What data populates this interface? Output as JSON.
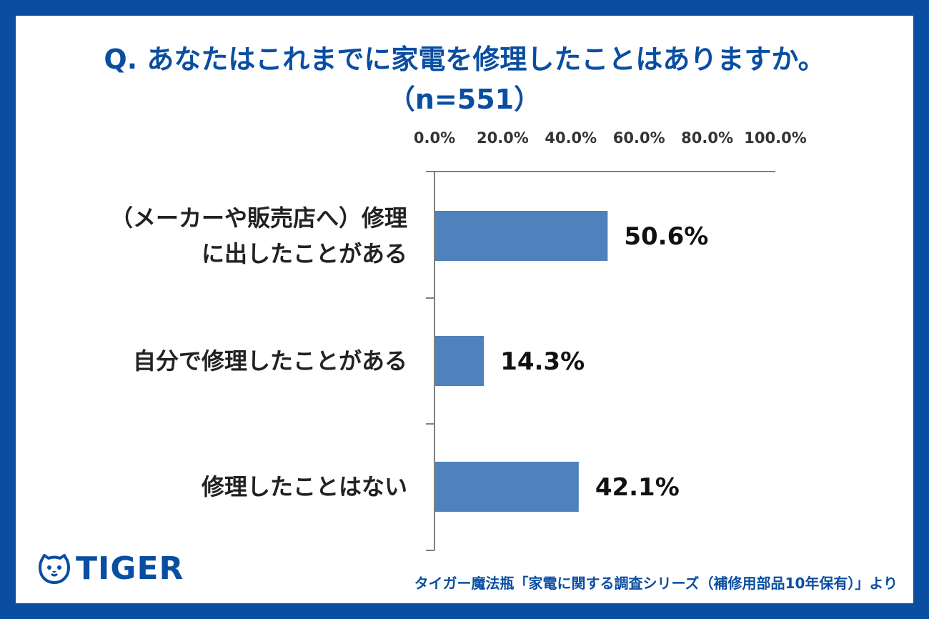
{
  "title_line1": "Q. あなたはこれまでに家電を修理したことはありますか。",
  "title_line2": "（n=551）",
  "footer": "タイガー魔法瓶「家電に関する調査シリーズ（補修用部品10年保有）」より",
  "logo_text": "TIGER",
  "colors": {
    "brand": "#0a4ea2",
    "bar": "#4f81bd",
    "axis": "#808080"
  },
  "chart_data": {
    "type": "bar",
    "orientation": "horizontal",
    "xlim": [
      0,
      100
    ],
    "ticks": [
      "0.0%",
      "20.0%",
      "40.0%",
      "60.0%",
      "80.0%",
      "100.0%"
    ],
    "categories": [
      [
        "（メーカーや販売店へ）修理",
        "に出したことがある"
      ],
      [
        "自分で修理したことがある"
      ],
      [
        "修理したことはない"
      ]
    ],
    "values": [
      50.6,
      14.3,
      42.1
    ],
    "value_labels": [
      "50.6%",
      "14.3%",
      "42.1%"
    ]
  }
}
